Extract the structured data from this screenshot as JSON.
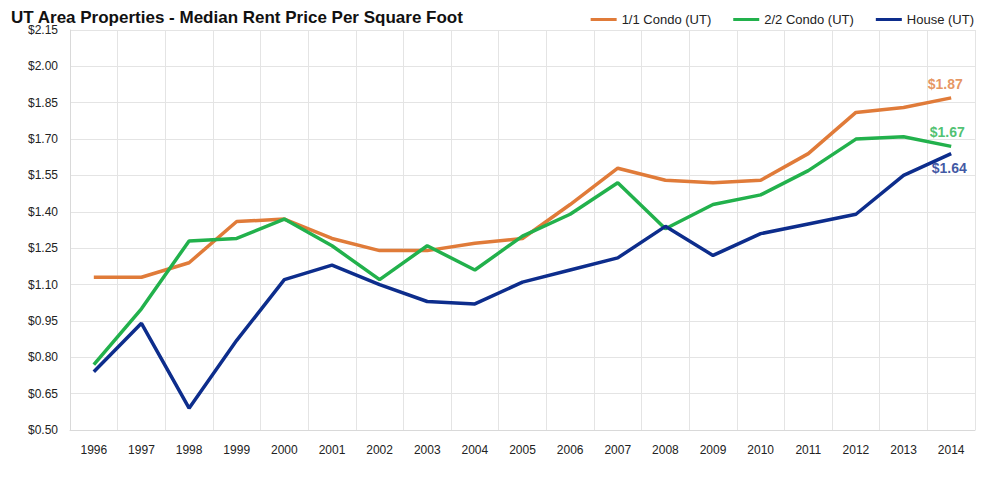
{
  "chart_data": {
    "type": "line",
    "title": "UT Area Properties - Median Rent Price Per Square Foot",
    "categories": [
      "1996",
      "1997",
      "1998",
      "1999",
      "2000",
      "2001",
      "2002",
      "2003",
      "2004",
      "2005",
      "2006",
      "2007",
      "2008",
      "2009",
      "2010",
      "2011",
      "2012",
      "2013",
      "2014"
    ],
    "series": [
      {
        "name": "1/1 Condo (UT)",
        "color": "#e07b39",
        "values": [
          1.13,
          1.13,
          1.19,
          1.36,
          1.37,
          1.29,
          1.24,
          1.24,
          1.27,
          1.29,
          1.43,
          1.58,
          1.53,
          1.52,
          1.53,
          1.64,
          1.81,
          1.83,
          1.87
        ]
      },
      {
        "name": "2/2 Condo (UT)",
        "color": "#22b14c",
        "values": [
          0.77,
          1.0,
          1.28,
          1.29,
          1.37,
          1.26,
          1.12,
          1.26,
          1.16,
          1.3,
          1.39,
          1.52,
          1.33,
          1.43,
          1.47,
          1.57,
          1.7,
          1.71,
          1.67
        ]
      },
      {
        "name": "House (UT)",
        "color": "#0d2d8c",
        "values": [
          0.74,
          0.94,
          0.59,
          0.87,
          1.12,
          1.18,
          1.1,
          1.03,
          1.02,
          1.11,
          1.16,
          1.21,
          1.34,
          1.22,
          1.31,
          1.35,
          1.39,
          1.55,
          1.64
        ]
      }
    ],
    "annotations": [
      {
        "text": "$1.87",
        "x": "2014",
        "y": 1.87,
        "color": "#e07b39"
      },
      {
        "text": "$1.67",
        "x": "2014",
        "y": 1.67,
        "color": "#22b14c"
      },
      {
        "text": "$1.64",
        "x": "2014",
        "y": 1.64,
        "color": "#0d2d8c"
      }
    ],
    "ylim": [
      0.5,
      2.15
    ],
    "yticks": [
      {
        "value": 0.5,
        "label": "$0.50"
      },
      {
        "value": 0.65,
        "label": "$0.65"
      },
      {
        "value": 0.8,
        "label": "$0.80"
      },
      {
        "value": 0.95,
        "label": "$0.95"
      },
      {
        "value": 1.1,
        "label": "$1.10"
      },
      {
        "value": 1.25,
        "label": "$1.25"
      },
      {
        "value": 1.4,
        "label": "$1.40"
      },
      {
        "value": 1.55,
        "label": "$1.55"
      },
      {
        "value": 1.7,
        "label": "$1.70"
      },
      {
        "value": 1.85,
        "label": "$1.85"
      },
      {
        "value": 2.0,
        "label": "$2.00"
      },
      {
        "value": 2.15,
        "label": "$2.15"
      }
    ],
    "grid": true,
    "legend": "top-right"
  }
}
